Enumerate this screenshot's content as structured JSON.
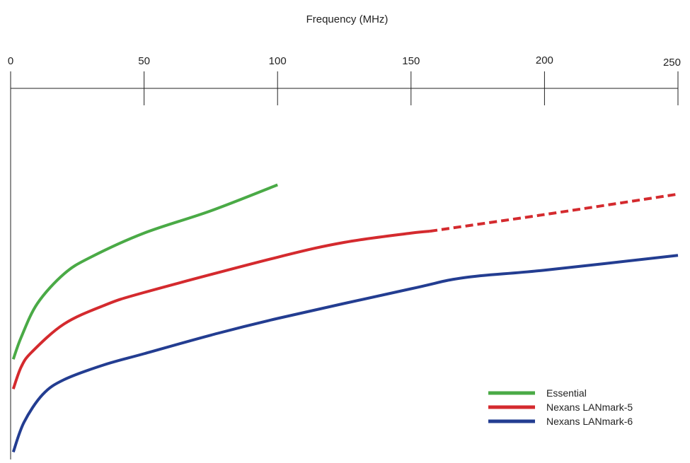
{
  "chart_data": {
    "type": "line",
    "title": "",
    "xlabel": "Frequency (MHz)",
    "ylabel": "",
    "x_axis_position": "top",
    "xlim": [
      0,
      250
    ],
    "ylim": [
      0,
      1
    ],
    "x_ticks": [
      0,
      50,
      100,
      150,
      200,
      250
    ],
    "x_tick_labels": [
      "0",
      "50",
      "100",
      "150",
      "200",
      "250"
    ],
    "grid": false,
    "legend_position": "bottom-right",
    "series": [
      {
        "name": "Essential",
        "color": "#4aaa46",
        "line_style": "solid",
        "points": [
          [
            1,
            0.27
          ],
          [
            4,
            0.33
          ],
          [
            10,
            0.42
          ],
          [
            20,
            0.5
          ],
          [
            30,
            0.545
          ],
          [
            50,
            0.61
          ],
          [
            75,
            0.67
          ],
          [
            100,
            0.74
          ]
        ]
      },
      {
        "name": "Nexans LANmark-5",
        "color": "#d42a2e",
        "line_style": "solid",
        "points": [
          [
            1,
            0.19
          ],
          [
            4,
            0.25
          ],
          [
            8,
            0.29
          ],
          [
            20,
            0.365
          ],
          [
            35,
            0.415
          ],
          [
            50,
            0.45
          ],
          [
            100,
            0.545
          ],
          [
            125,
            0.585
          ],
          [
            150,
            0.61
          ],
          [
            157,
            0.615
          ]
        ]
      },
      {
        "name": "Nexans LANmark-5 (extrapolated)",
        "color": "#d42a2e",
        "line_style": "dashed",
        "points": [
          [
            157,
            0.615
          ],
          [
            200,
            0.66
          ],
          [
            250,
            0.715
          ]
        ]
      },
      {
        "name": "Nexans LANmark-6",
        "color": "#233d91",
        "line_style": "solid",
        "points": [
          [
            1,
            0.02
          ],
          [
            5,
            0.1
          ],
          [
            12,
            0.175
          ],
          [
            20,
            0.215
          ],
          [
            35,
            0.255
          ],
          [
            50,
            0.285
          ],
          [
            75,
            0.335
          ],
          [
            100,
            0.38
          ],
          [
            150,
            0.46
          ],
          [
            170,
            0.49
          ],
          [
            200,
            0.51
          ],
          [
            250,
            0.55
          ]
        ]
      }
    ],
    "legend": [
      {
        "label": "Essential",
        "color": "#4aaa46"
      },
      {
        "label": "Nexans LANmark-5",
        "color": "#d42a2e"
      },
      {
        "label": "Nexans LANmark-6",
        "color": "#233d91"
      }
    ]
  }
}
